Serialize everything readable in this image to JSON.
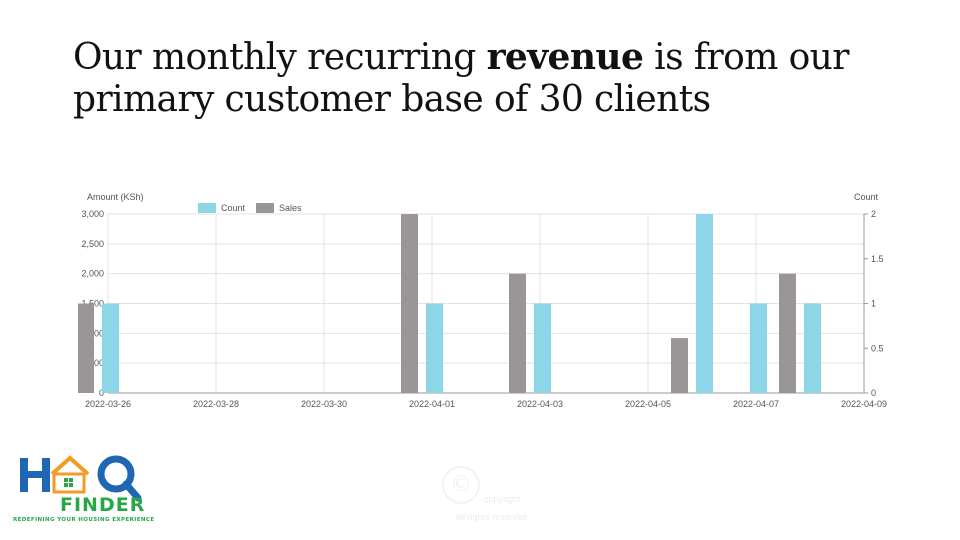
{
  "slide": {
    "title_part1": "Our monthly recurring ",
    "title_bold": "revenue",
    "title_part2": " is from our primary customer base of 30 clients"
  },
  "logo": {
    "name": "FINDER",
    "tagline": "REDEFINING YOUR HOUSING EXPERIENCE",
    "colors": {
      "blue": "#1f66b3",
      "orange": "#f59a23",
      "green": "#27a844"
    }
  },
  "watermark": {
    "line1": "copyright",
    "line2": "all rights reserved"
  },
  "chart_data": {
    "type": "bar",
    "ylabel": "Amount (KSh)",
    "y2label": "Count",
    "ylim": [
      0,
      3000
    ],
    "y2lim": [
      0,
      2
    ],
    "yticks": [
      "0",
      "500",
      "1,000",
      "1,500",
      "2,000",
      "2,500",
      "3,000"
    ],
    "y2ticks": [
      "0",
      "0.5",
      "1",
      "1.5",
      "2"
    ],
    "xticks": [
      "2022-03-26",
      "2022-03-28",
      "2022-03-30",
      "2022-04-01",
      "2022-04-03",
      "2022-04-05",
      "2022-04-07",
      "2022-04-09"
    ],
    "grid": true,
    "legend_position": "top-left",
    "series": [
      {
        "name": "Count",
        "axis": "right",
        "color": "#8dd6e8",
        "points": [
          {
            "x": "2022-03-26",
            "y": 1
          },
          {
            "x": "2022-04-01",
            "y": 1
          },
          {
            "x": "2022-04-03",
            "y": 1
          },
          {
            "x": "2022-04-06",
            "y": 2
          },
          {
            "x": "2022-04-07",
            "y": 1
          },
          {
            "x": "2022-04-08",
            "y": 1
          }
        ]
      },
      {
        "name": "Sales",
        "axis": "left",
        "color": "#9a9596",
        "points": [
          {
            "x": "2022-03-26",
            "y": 1500
          },
          {
            "x": "2022-04-01",
            "y": 3000
          },
          {
            "x": "2022-04-03",
            "y": 2000
          },
          {
            "x": "2022-04-06",
            "y": 920
          },
          {
            "x": "2022-04-08",
            "y": 2000
          }
        ]
      }
    ]
  }
}
